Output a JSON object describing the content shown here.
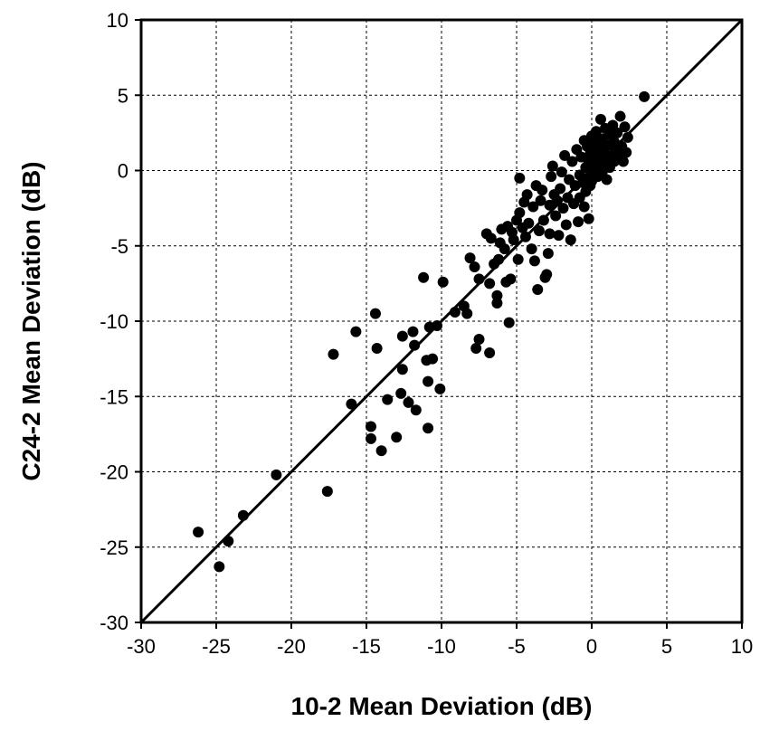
{
  "chart_data": {
    "type": "scatter",
    "xlabel": "10-2 Mean Deviation (dB)",
    "ylabel": "C24-2 Mean Deviation (dB)",
    "xlim": [
      -30,
      10
    ],
    "ylim": [
      -30,
      10
    ],
    "xticks": [
      -30,
      -25,
      -20,
      -15,
      -10,
      -5,
      0,
      5,
      10
    ],
    "yticks": [
      -30,
      -25,
      -20,
      -15,
      -10,
      -5,
      0,
      5,
      10
    ],
    "grid": true,
    "reference_line": "y = x",
    "marker_color": "#000000",
    "series": [
      {
        "points": [
          [
            -26.2,
            -24.0
          ],
          [
            -24.8,
            -26.3
          ],
          [
            -24.2,
            -24.6
          ],
          [
            -23.2,
            -22.9
          ],
          [
            -21.0,
            -20.2
          ],
          [
            -17.6,
            -21.3
          ],
          [
            -17.2,
            -12.2
          ],
          [
            -16.0,
            -15.5
          ],
          [
            -15.7,
            -10.7
          ],
          [
            -14.7,
            -17.8
          ],
          [
            -14.7,
            -17.0
          ],
          [
            -14.4,
            -9.5
          ],
          [
            -14.3,
            -11.8
          ],
          [
            -14.0,
            -18.6
          ],
          [
            -13.6,
            -15.2
          ],
          [
            -13.0,
            -17.7
          ],
          [
            -12.7,
            -14.8
          ],
          [
            -12.6,
            -13.2
          ],
          [
            -12.6,
            -11.0
          ],
          [
            -12.2,
            -15.4
          ],
          [
            -11.9,
            -10.7
          ],
          [
            -11.8,
            -11.6
          ],
          [
            -11.7,
            -15.9
          ],
          [
            -11.2,
            -7.1
          ],
          [
            -11.0,
            -12.6
          ],
          [
            -10.9,
            -17.1
          ],
          [
            -10.9,
            -14.0
          ],
          [
            -10.8,
            -10.4
          ],
          [
            -10.6,
            -12.5
          ],
          [
            -10.3,
            -10.3
          ],
          [
            -10.1,
            -14.5
          ],
          [
            -9.9,
            -7.4
          ],
          [
            -9.1,
            -9.4
          ],
          [
            -8.5,
            -9.0
          ],
          [
            -8.3,
            -9.5
          ],
          [
            -8.1,
            -5.8
          ],
          [
            -7.8,
            -6.4
          ],
          [
            -7.7,
            -11.8
          ],
          [
            -7.5,
            -7.2
          ],
          [
            -7.5,
            -11.2
          ],
          [
            -7.0,
            -4.2
          ],
          [
            -6.8,
            -12.1
          ],
          [
            -6.8,
            -7.5
          ],
          [
            -6.7,
            -4.5
          ],
          [
            -6.5,
            -6.2
          ],
          [
            -6.3,
            -8.3
          ],
          [
            -6.3,
            -8.8
          ],
          [
            -6.2,
            -5.9
          ],
          [
            -6.1,
            -4.8
          ],
          [
            -6.0,
            -3.9
          ],
          [
            -5.8,
            -5.2
          ],
          [
            -5.7,
            -7.4
          ],
          [
            -5.6,
            -3.7
          ],
          [
            -5.5,
            -10.1
          ],
          [
            -5.4,
            -7.2
          ],
          [
            -5.3,
            -4.1
          ],
          [
            -5.2,
            -4.6
          ],
          [
            -5.0,
            -3.3
          ],
          [
            -4.9,
            -5.9
          ],
          [
            -4.8,
            -2.8
          ],
          [
            -4.8,
            -0.5
          ],
          [
            -4.6,
            -3.8
          ],
          [
            -4.5,
            -2.1
          ],
          [
            -4.4,
            -4.4
          ],
          [
            -4.3,
            -1.6
          ],
          [
            -4.2,
            -3.5
          ],
          [
            -4.0,
            -5.2
          ],
          [
            -3.9,
            -2.4
          ],
          [
            -3.8,
            -6.0
          ],
          [
            -3.7,
            -1.0
          ],
          [
            -3.6,
            -7.9
          ],
          [
            -3.5,
            -4.0
          ],
          [
            -3.4,
            -2.0
          ],
          [
            -3.3,
            -1.3
          ],
          [
            -3.2,
            -3.3
          ],
          [
            -3.1,
            -7.1
          ],
          [
            -3.0,
            -6.9
          ],
          [
            -2.9,
            -5.5
          ],
          [
            -2.8,
            -4.2
          ],
          [
            -2.8,
            -2.3
          ],
          [
            -2.7,
            -0.4
          ],
          [
            -2.6,
            0.3
          ],
          [
            -2.5,
            -1.6
          ],
          [
            -2.4,
            -3.0
          ],
          [
            -2.3,
            -2.0
          ],
          [
            -2.2,
            -4.3
          ],
          [
            -2.1,
            -1.2
          ],
          [
            -2.0,
            -0.1
          ],
          [
            -1.9,
            -2.5
          ],
          [
            -1.8,
            1.0
          ],
          [
            -1.7,
            -3.6
          ],
          [
            -1.6,
            -1.8
          ],
          [
            -1.5,
            -0.6
          ],
          [
            -1.4,
            -4.6
          ],
          [
            -1.3,
            0.6
          ],
          [
            -1.2,
            -2.2
          ],
          [
            -1.1,
            -1.0
          ],
          [
            -1.0,
            1.4
          ],
          [
            -0.9,
            -3.4
          ],
          [
            -0.8,
            -0.3
          ],
          [
            -0.8,
            -1.8
          ],
          [
            -0.7,
            0.9
          ],
          [
            -0.6,
            -0.8
          ],
          [
            -0.5,
            2.0
          ],
          [
            -0.5,
            -2.4
          ],
          [
            -0.4,
            0.2
          ],
          [
            -0.4,
            -1.4
          ],
          [
            -0.3,
            1.6
          ],
          [
            -0.3,
            -0.5
          ],
          [
            -0.2,
            0.6
          ],
          [
            -0.2,
            -3.2
          ],
          [
            -0.1,
            1.1
          ],
          [
            -0.1,
            -1.0
          ],
          [
            0.0,
            0.3
          ],
          [
            0.0,
            2.3
          ],
          [
            0.0,
            -0.7
          ],
          [
            0.1,
            1.8
          ],
          [
            0.1,
            -0.2
          ],
          [
            0.2,
            0.8
          ],
          [
            0.2,
            1.5
          ],
          [
            0.3,
            0.1
          ],
          [
            0.3,
            2.6
          ],
          [
            0.4,
            1.2
          ],
          [
            0.4,
            -0.4
          ],
          [
            0.5,
            0.5
          ],
          [
            0.5,
            1.9
          ],
          [
            0.6,
            0.9
          ],
          [
            0.6,
            3.4
          ],
          [
            0.7,
            -0.1
          ],
          [
            0.7,
            2.1
          ],
          [
            0.8,
            0.4
          ],
          [
            0.8,
            1.4
          ],
          [
            0.9,
            2.8
          ],
          [
            1.0,
            0.7
          ],
          [
            1.0,
            -0.6
          ],
          [
            1.1,
            1.7
          ],
          [
            1.2,
            0.2
          ],
          [
            1.2,
            2.4
          ],
          [
            1.3,
            1.0
          ],
          [
            1.4,
            3.0
          ],
          [
            1.5,
            0.6
          ],
          [
            1.5,
            1.9
          ],
          [
            1.6,
            1.3
          ],
          [
            1.7,
            2.5
          ],
          [
            1.8,
            0.9
          ],
          [
            1.9,
            3.6
          ],
          [
            2.0,
            1.6
          ],
          [
            2.1,
            0.6
          ],
          [
            2.2,
            2.9
          ],
          [
            2.3,
            1.2
          ],
          [
            2.4,
            2.2
          ],
          [
            3.5,
            4.9
          ]
        ]
      }
    ]
  }
}
